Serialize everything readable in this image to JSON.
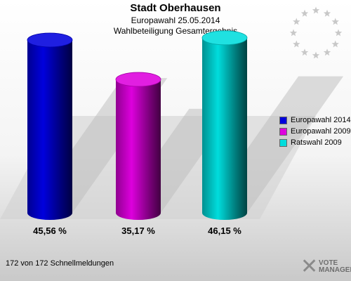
{
  "header": {
    "title": "Stadt Oberhausen",
    "subtitle1": "Europawahl 25.05.2014",
    "subtitle2": "Wahlbeteiligung Gesamtergebnis"
  },
  "chart_data": {
    "type": "bar",
    "title": "Stadt Oberhausen",
    "categories": [
      "Europawahl 2014",
      "Europawahl 2009",
      "Ratswahl 2009"
    ],
    "values": [
      45.56,
      35.17,
      46.15
    ],
    "value_labels": [
      "45,56 %",
      "35,17 %",
      "46,15 %"
    ],
    "colors": [
      "#0000dd",
      "#dd00dd",
      "#00dddd"
    ],
    "ylim": [
      0,
      50
    ],
    "legend_position": "right"
  },
  "legend": {
    "items": [
      {
        "label": "Europawahl 2014",
        "color": "#0000dd"
      },
      {
        "label": "Europawahl 2009",
        "color": "#dd00dd"
      },
      {
        "label": "Ratswahl 2009",
        "color": "#00dddd"
      }
    ]
  },
  "footer": {
    "text": "172 von 172 Schnellmeldungen"
  },
  "logo": {
    "line1": "VOTE",
    "line2": "MANAGER",
    "icon": "x-logo-icon"
  },
  "emblem": {
    "icon": "eu-stars-icon",
    "color": "#c8c8c8"
  }
}
